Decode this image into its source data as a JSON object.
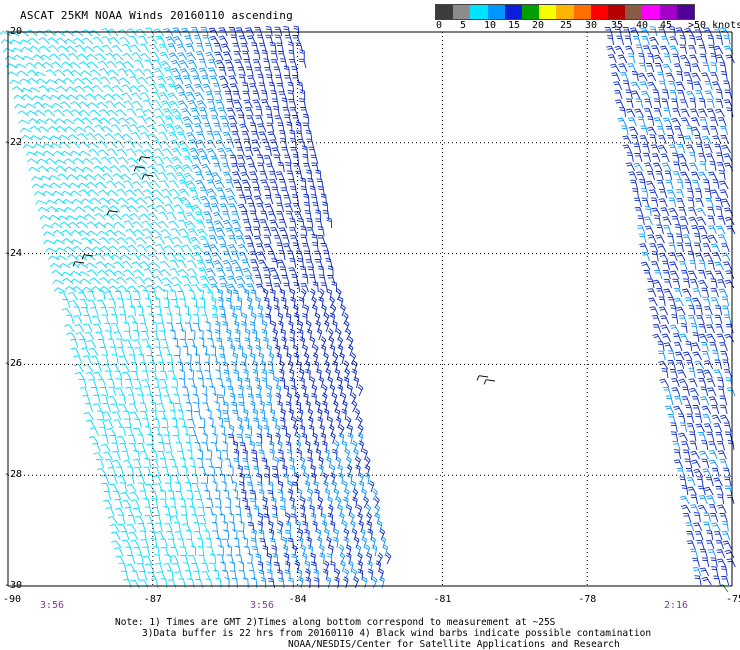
{
  "title": "ASCAT 25KM NOAA Winds 20160110 ascending",
  "legend": {
    "labels": [
      "0",
      "5",
      "10",
      "15",
      "20",
      "25",
      "30",
      "35",
      "40",
      "45",
      ">50 knots"
    ],
    "colors": [
      "#3c3c3c",
      "#8c8c8c",
      "#00e5ff",
      "#0096ff",
      "#0a1edc",
      "#00a000",
      "#f5ff00",
      "#ffb400",
      "#ff6e00",
      "#ff0000",
      "#b40000",
      "#8c5a46",
      "#ff00ff",
      "#a000c8",
      "#500096"
    ]
  },
  "map": {
    "lat_labels": [
      "-20",
      "-22",
      "-24",
      "-26",
      "-28",
      "-30"
    ],
    "lon_labels": [
      "-90",
      "-87",
      "-84",
      "-81",
      "-78",
      "-75"
    ],
    "lat_range": [
      -30,
      -20
    ],
    "lon_range": [
      -90,
      -75
    ],
    "grid": true,
    "barb_colors": {
      "light": "#00dcff",
      "medium": "#0a96ff",
      "dark": "#0a28c8",
      "contaminated": "#000000",
      "green": "#00a000"
    }
  },
  "times": [
    "3:56",
    "3:56",
    "2:16"
  ],
  "notes": [
    "Note: 1) Times are GMT 2)Times along bottom correspond to measurement at ~25S",
    "3)Data buffer is 22 hrs from 20160110 4) Black wind barbs indicate possible contamination",
    "NOAA/NESDIS/Center for Satellite Applications and Research"
  ]
}
